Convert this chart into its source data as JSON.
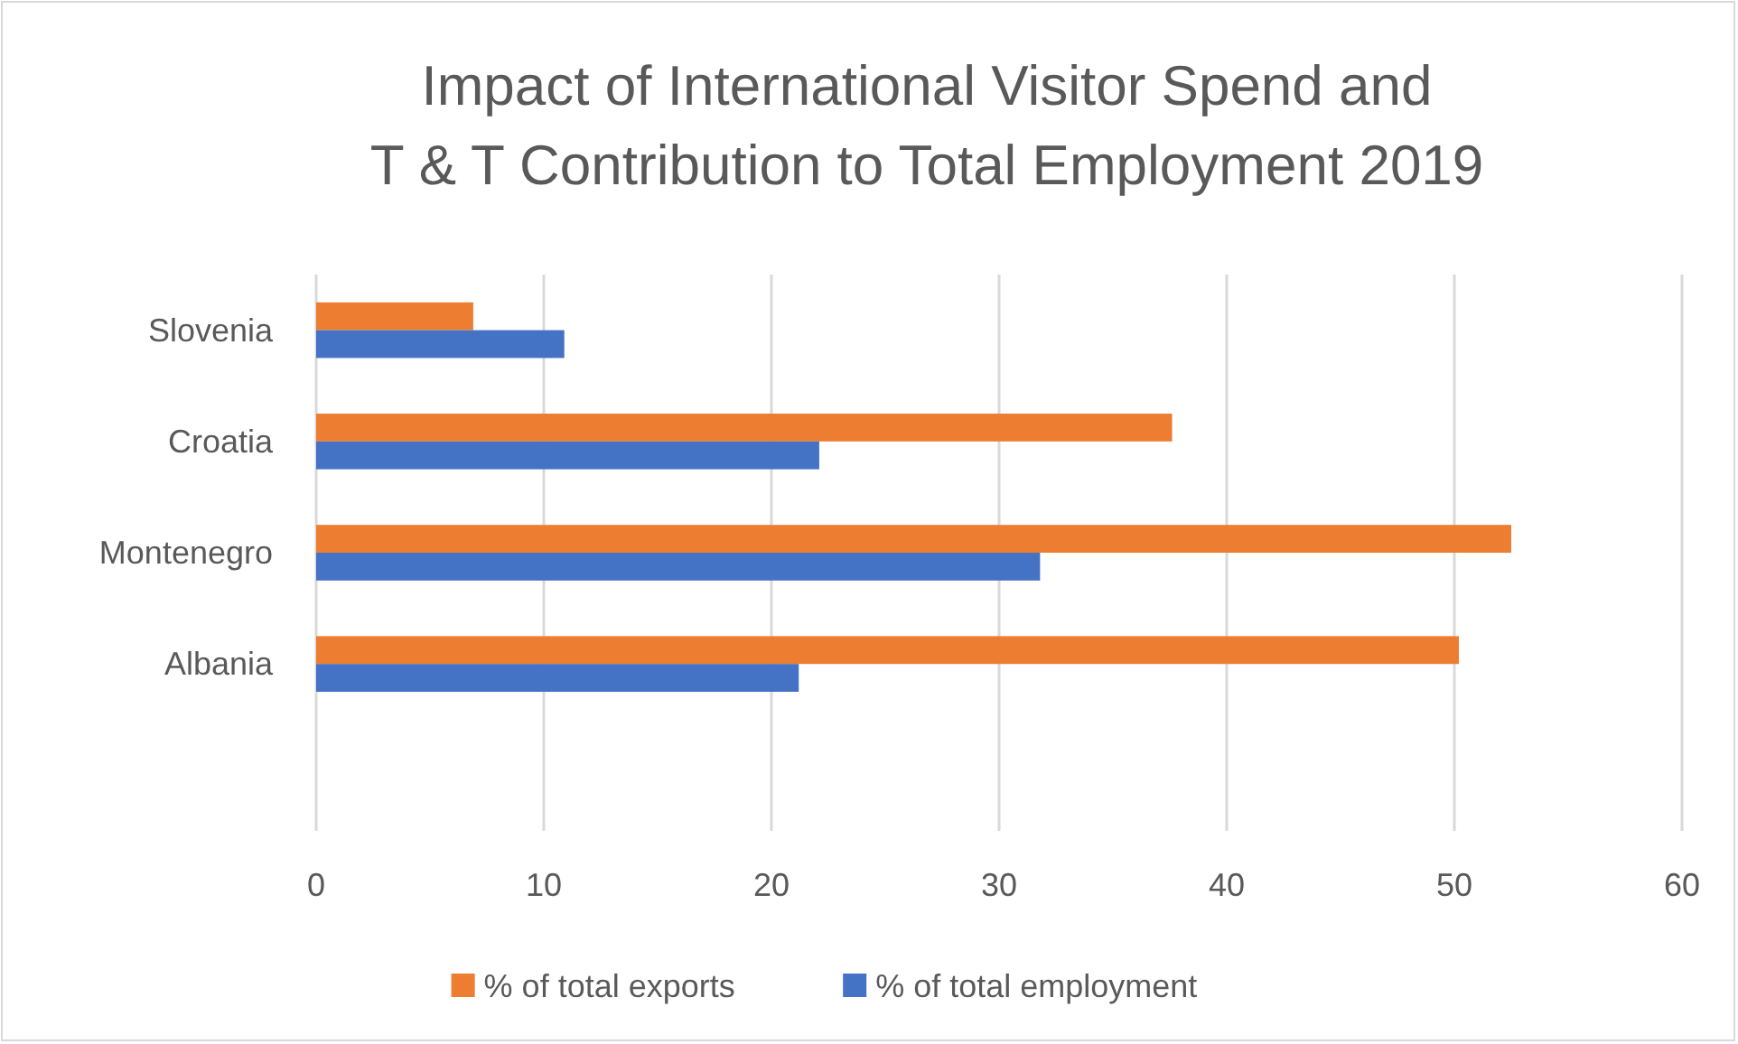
{
  "chart_data": {
    "type": "bar",
    "orientation": "horizontal",
    "title": "Impact of International Visitor Spend and\nT & T Contribution to Total Employment 2019",
    "categories": [
      "Slovenia",
      "Croatia",
      "Montenegro",
      "Albania",
      null
    ],
    "series": [
      {
        "name": "% of total exports",
        "color": "#ed7d31",
        "values": [
          6.9,
          37.6,
          52.5,
          50.2,
          null
        ]
      },
      {
        "name": "% of total employment",
        "color": "#4472c4",
        "values": [
          10.9,
          22.1,
          31.8,
          21.2,
          null
        ]
      }
    ],
    "xlim": [
      0,
      60
    ],
    "xticks": [
      0,
      10,
      20,
      30,
      40,
      50,
      60
    ],
    "grid": "x",
    "legend": "bottom"
  }
}
